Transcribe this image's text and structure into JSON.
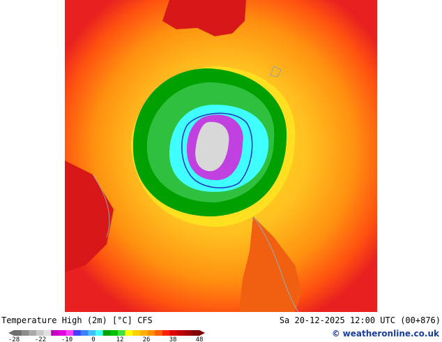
{
  "title": "Temperature High (2m) [°C] CFS",
  "datetime": "Sa 20-12-2025 12:00 UTC (00+876)",
  "credit": {
    "symbol": "©",
    "text": "weatheronline.co.uk"
  },
  "legend": {
    "tick_labels": [
      "-28",
      "-22",
      "-10",
      "0",
      "12",
      "26",
      "38",
      "48"
    ],
    "colors": [
      "#6e6e6e",
      "#8c8c8c",
      "#aaaaaa",
      "#c8c8c8",
      "#e0e0e0",
      "#c000c0",
      "#e000e0",
      "#ff40ff",
      "#4040ff",
      "#4080ff",
      "#40c0ff",
      "#40ffff",
      "#00a000",
      "#00c000",
      "#40e040",
      "#ffff00",
      "#ffd000",
      "#ffb000",
      "#ff9000",
      "#ff6000",
      "#ff2000",
      "#e00000",
      "#c00000",
      "#a00000",
      "#800000"
    ]
  },
  "map_colors": {
    "hot": "#e82020",
    "warm": "#ff7a10",
    "mild": "#ffb020",
    "cool": "#ffe020",
    "lightgreen": "#30c040",
    "green": "#00a000",
    "cyan": "#40ffff",
    "purple": "#c040e0",
    "gray": "#c8c8c8",
    "land_dark": "#c01010",
    "coast": "#a0a0a0"
  }
}
